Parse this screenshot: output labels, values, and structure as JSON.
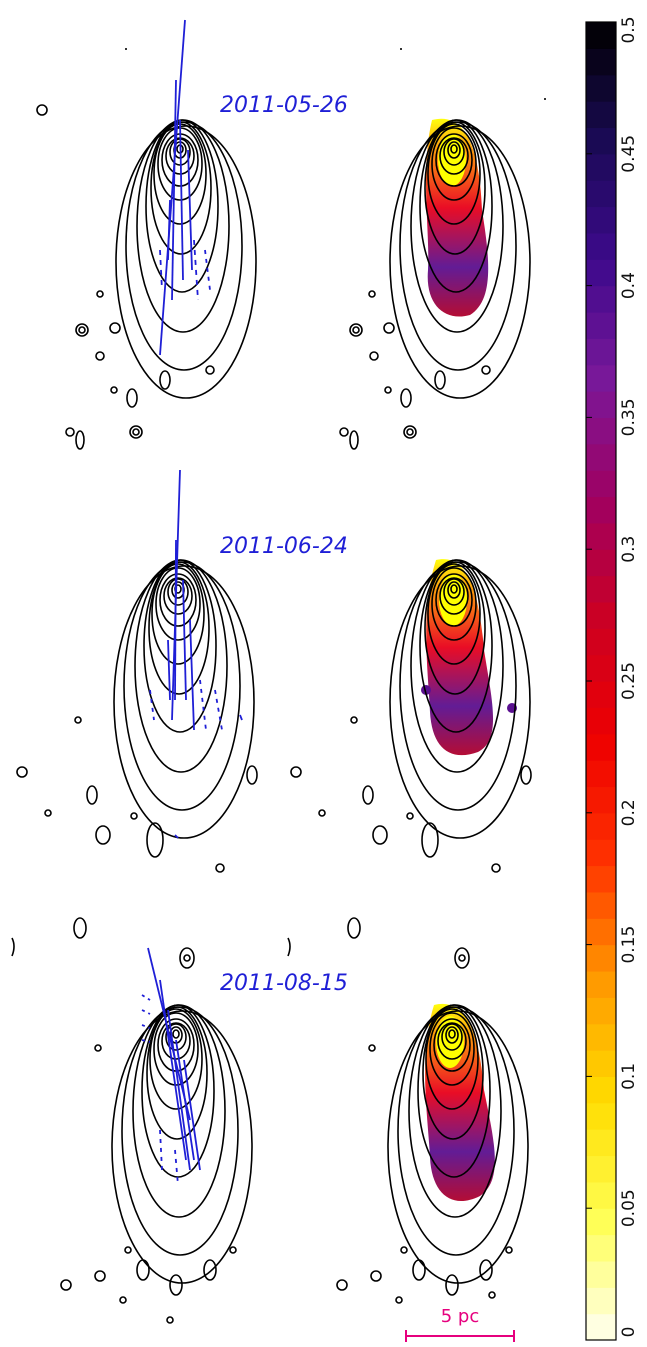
{
  "epochs": [
    {
      "label": "2011-05-26"
    },
    {
      "label": "2011-06-24"
    },
    {
      "label": "2011-08-15"
    }
  ],
  "colorbar": {
    "range": [
      0,
      0.5
    ],
    "ticks": [
      "0",
      "0.05",
      "0.1",
      "0.15",
      "0.2",
      "0.25",
      "0.3",
      "0.35",
      "0.4",
      "0.45",
      "0.5"
    ],
    "stops": [
      "#fffff2",
      "#ffff55",
      "#ffdd00",
      "#ff9900",
      "#ff3300",
      "#ee0000",
      "#cc0022",
      "#a00060",
      "#7a1899",
      "#3e0a8c",
      "#1a0a55",
      "#000000"
    ]
  },
  "scalebar": {
    "label": "5 pc",
    "color": "#e6007e"
  },
  "colors": {
    "evpa": "#1f1fd6",
    "contour": "#000000",
    "epoch_label": "#1f1fd6"
  }
}
